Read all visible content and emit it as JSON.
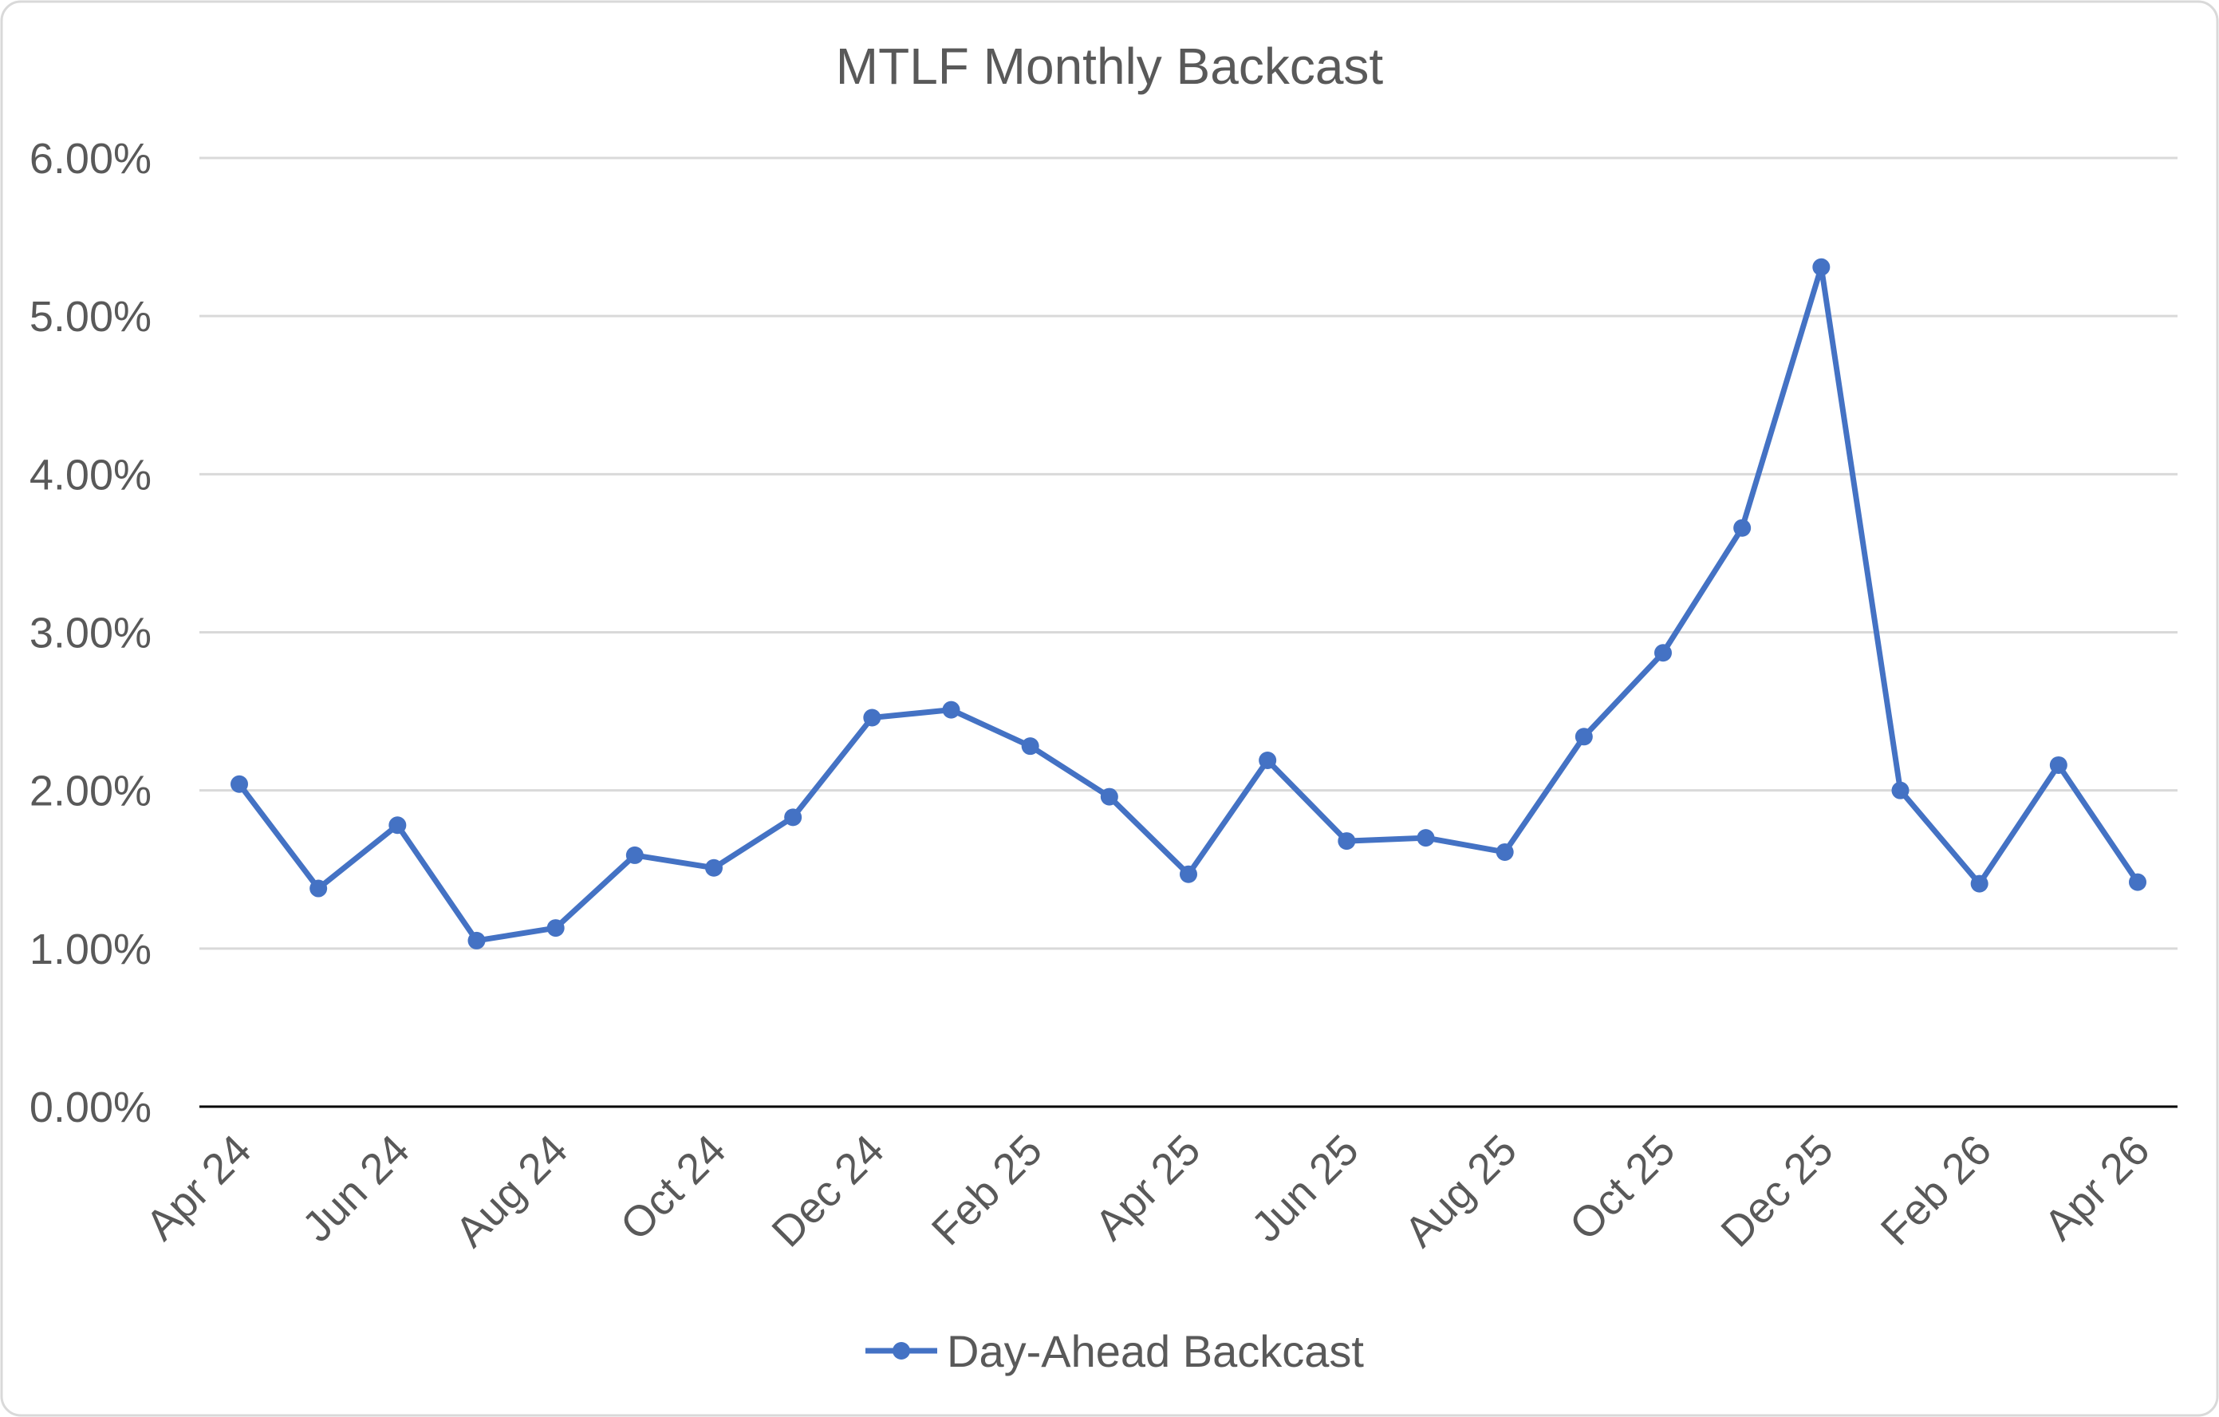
{
  "colors": {
    "series": "#4472C4",
    "gridline": "#D9D9D9",
    "axis": "#000000",
    "text": "#595959",
    "border": "#D9D9D9"
  },
  "chart_data": {
    "type": "line",
    "title": "MTLF Monthly Backcast",
    "xlabel": "",
    "ylabel": "",
    "ylim": [
      0,
      0.06
    ],
    "yticks": [
      "0.00%",
      "1.00%",
      "2.00%",
      "3.00%",
      "4.00%",
      "5.00%",
      "6.00%"
    ],
    "x": [
      "Apr 24",
      "May 24",
      "Jun 24",
      "Jul 24",
      "Aug 24",
      "Sep 24",
      "Oct 24",
      "Nov 24",
      "Dec 24",
      "Jan 25",
      "Feb 25",
      "Mar 25",
      "Apr 25",
      "May 25",
      "Jun 25",
      "Jul 25",
      "Aug 25",
      "Sep 25",
      "Oct 25",
      "Nov 25",
      "Dec 25",
      "Jan 26",
      "Feb 26",
      "Mar 26",
      "Apr 26"
    ],
    "x_tick_labels": [
      "Apr 24",
      "Jun 24",
      "Aug 24",
      "Oct 24",
      "Dec 24",
      "Feb 25",
      "Apr 25",
      "Jun 25",
      "Aug 25",
      "Oct 25",
      "Dec 25",
      "Feb 26",
      "Apr 26"
    ],
    "series": [
      {
        "name": "Day-Ahead Backcast",
        "values": [
          0.0204,
          0.0138,
          0.0178,
          0.0105,
          0.0113,
          0.0159,
          0.0151,
          0.0183,
          0.0246,
          0.0251,
          0.0228,
          0.0196,
          0.0147,
          0.0219,
          0.0168,
          0.017,
          0.0161,
          0.0234,
          0.0287,
          0.0366,
          0.0531,
          0.02,
          0.0141,
          0.0216,
          0.0142
        ]
      }
    ],
    "grid": true,
    "legend_position": "bottom"
  }
}
